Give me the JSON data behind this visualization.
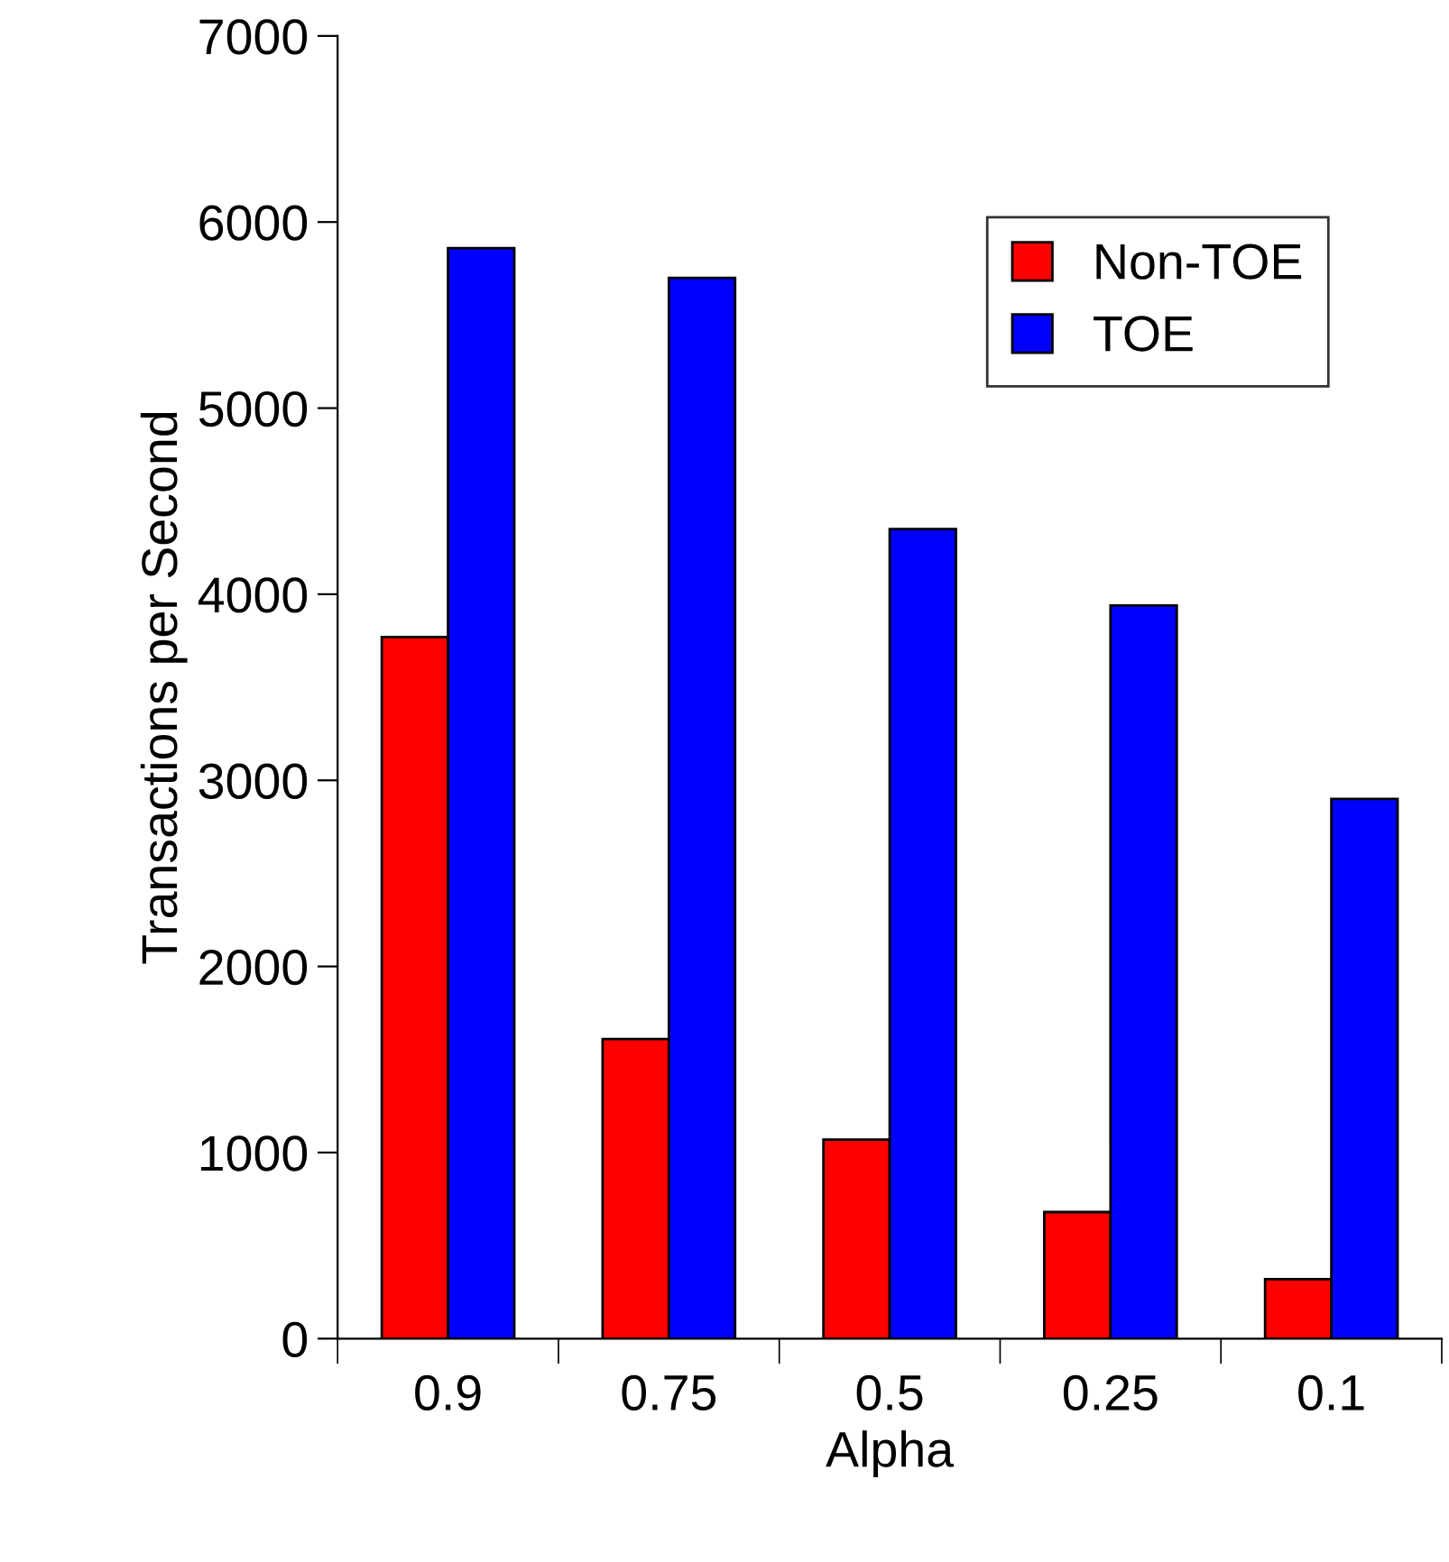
{
  "chart_data": {
    "type": "bar",
    "xlabel": "Alpha",
    "ylabel": "Transactions per Second",
    "categories": [
      "0.9",
      "0.75",
      "0.5",
      "0.25",
      "0.1"
    ],
    "series": [
      {
        "name": "Non-TOE",
        "color": "#ff0000",
        "values": [
          3770,
          1610,
          1070,
          680,
          320
        ]
      },
      {
        "name": "TOE",
        "color": "#0000ff",
        "values": [
          5860,
          5700,
          4350,
          3940,
          2900
        ]
      }
    ],
    "ylim": [
      0,
      7000
    ],
    "yticks": [
      0,
      1000,
      2000,
      3000,
      4000,
      5000,
      6000,
      7000
    ],
    "grid": false,
    "legend": "top right"
  }
}
